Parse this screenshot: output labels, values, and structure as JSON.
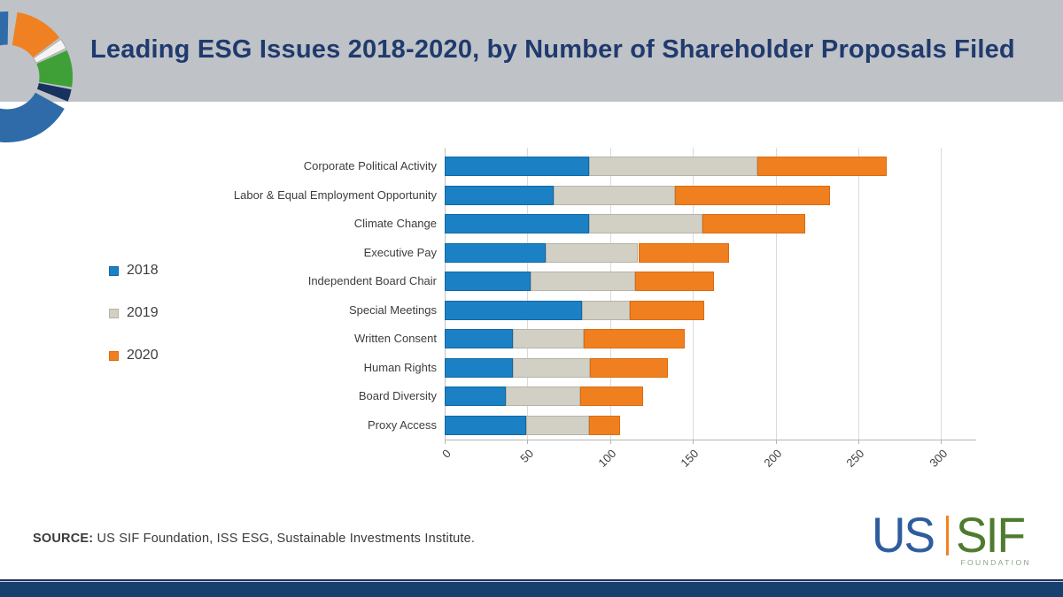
{
  "header": {
    "title": "Leading ESG Issues 2018-2020, by Number of Shareholder Proposals Filed"
  },
  "chart_data": {
    "type": "bar",
    "orientation": "horizontal",
    "stacked": true,
    "categories": [
      "Corporate Political Activity",
      "Labor & Equal Employment Opportunity",
      "Climate Change",
      "Executive Pay",
      "Independent Board Chair",
      "Special Meetings",
      "Written Consent",
      "Human Rights",
      "Board Diversity",
      "Proxy Access"
    ],
    "series": [
      {
        "name": "2018",
        "color": "#1b80c4",
        "border": "#0f69a9",
        "values": [
          87,
          66,
          87,
          61,
          52,
          83,
          41,
          41,
          37,
          49
        ]
      },
      {
        "name": "2019",
        "color": "#d2cfc5",
        "border": "#b7b3a6",
        "values": [
          102,
          73,
          69,
          56,
          63,
          29,
          43,
          47,
          45,
          38
        ]
      },
      {
        "name": "2020",
        "color": "#f0801f",
        "border": "#db6c10",
        "values": [
          78,
          94,
          62,
          55,
          48,
          45,
          61,
          47,
          38,
          19
        ]
      }
    ],
    "xlim": [
      0,
      300
    ],
    "xticks": [
      0,
      50,
      100,
      150,
      200,
      250,
      300
    ],
    "grid": true,
    "legend_position": "left",
    "xlabel": "",
    "ylabel": ""
  },
  "legend": {
    "items": [
      {
        "label": "2018",
        "color": "#1b80c4",
        "border": "#0f69a9"
      },
      {
        "label": "2019",
        "color": "#d2cfc5",
        "border": "#b7b3a6"
      },
      {
        "label": "2020",
        "color": "#f0801f",
        "border": "#db6c10"
      }
    ]
  },
  "source": {
    "label": "SOURCE:",
    "text": " US SIF Foundation, ISS ESG, Sustainable Investments Institute."
  },
  "logo": {
    "us": "US",
    "sif": "SIF",
    "foundation": "FOUNDATION",
    "us_color": "#2d5d9e",
    "sif_color": "#4e7b2d",
    "separator_color": "#f5821f"
  },
  "donut_logo": {
    "segments": [
      {
        "name": "orange",
        "color": "#f08122",
        "from": 9,
        "to": 53
      },
      {
        "name": "white-sliver",
        "color": "#f4f4f2",
        "from": 55,
        "to": 64
      },
      {
        "name": "green",
        "color": "#3fa037",
        "from": 66,
        "to": 99
      },
      {
        "name": "navy",
        "color": "#17325f",
        "from": 101,
        "to": 112
      },
      {
        "name": "blue",
        "color": "#2e6ba8",
        "from": 119,
        "to": 361
      }
    ]
  },
  "colors": {
    "header_band": "#bfc2c6",
    "title": "#1f3a6e",
    "text": "#3d3d3d",
    "gridline": "#dadada",
    "axis": "#b5b5b5",
    "bottom_bar": "#16406e"
  }
}
